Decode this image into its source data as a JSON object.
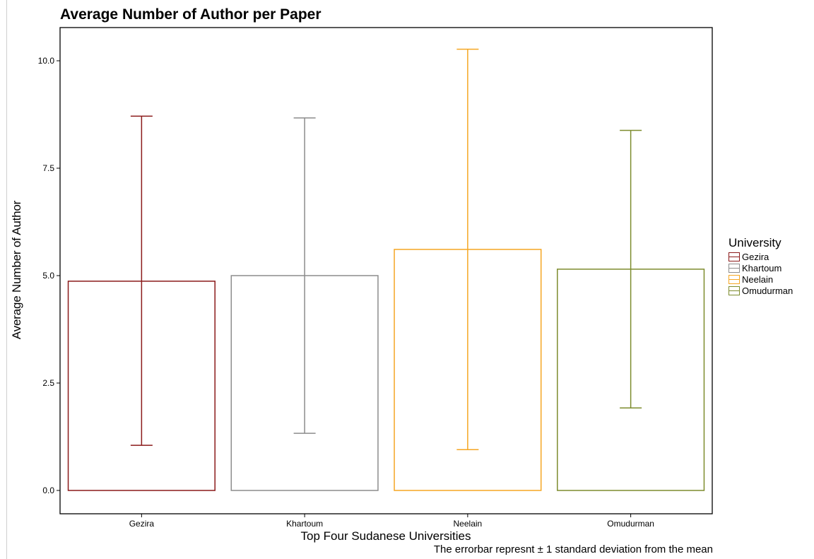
{
  "chart_data": {
    "type": "bar",
    "title": "Average Number of Author per Paper",
    "xlabel": "Top Four Sudanese Universities",
    "ylabel": "Average Number of Author",
    "caption": "The errorbar represnt ± 1 standard deviation from the mean",
    "categories": [
      "Gezira",
      "Khartoum",
      "Neelain",
      "Omudurman"
    ],
    "values": [
      4.87,
      5.0,
      5.61,
      5.15
    ],
    "error_lower": [
      1.05,
      1.33,
      0.95,
      1.92
    ],
    "error_upper": [
      8.71,
      8.67,
      10.27,
      8.38
    ],
    "colors": [
      "#8b1a1a",
      "#8c8c8c",
      "#f5a623",
      "#7d8c2e"
    ],
    "ylim": [
      0,
      10.75
    ],
    "yticks": [
      0.0,
      2.5,
      5.0,
      7.5,
      10.0
    ],
    "ytick_labels": [
      "0.0",
      "2.5",
      "5.0",
      "7.5",
      "10.0"
    ],
    "grid": false,
    "legend": {
      "title": "University",
      "placement": "right",
      "entries": [
        "Gezira",
        "Khartoum",
        "Neelain",
        "Omudurman"
      ]
    }
  }
}
